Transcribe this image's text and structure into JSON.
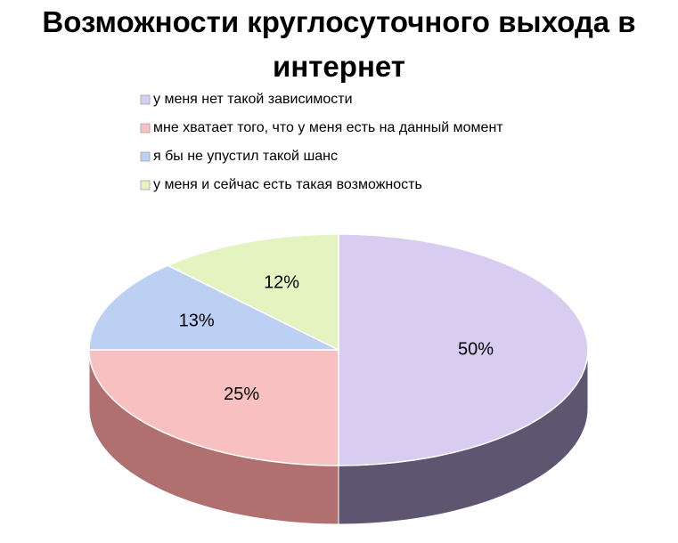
{
  "chart_data": {
    "type": "pie",
    "title": "Возможности круглосуточного выхода в интернет",
    "categories": [
      "у меня нет такой зависимости",
      "мне хватает того, что у меня есть на данный момент",
      "я бы не упустил такой шанс",
      "у меня и сейчас есть такая возможность"
    ],
    "values": [
      50,
      25,
      13,
      12
    ],
    "value_labels": [
      "50%",
      "25%",
      "13%",
      "12%"
    ],
    "colors": [
      "#d8cdf0",
      "#f8c0c0",
      "#bcd0f4",
      "#e4f4c0"
    ],
    "side_colors": [
      "#5e5670",
      "#b07070",
      "#6a7a98",
      "#8a9a6a"
    ],
    "legend": "top"
  }
}
